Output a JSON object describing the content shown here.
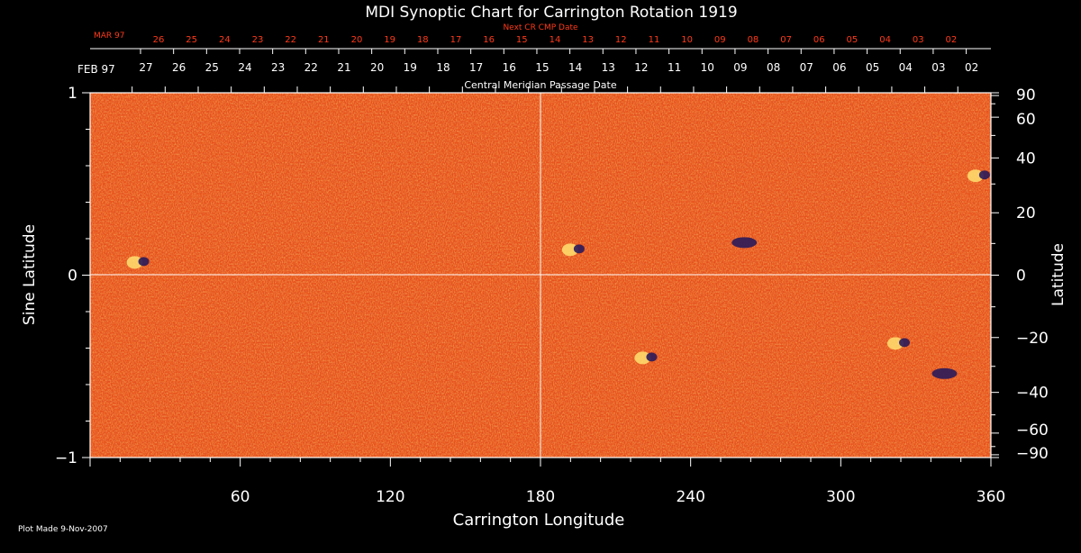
{
  "chart_data": {
    "type": "heatmap",
    "title": "MDI Synoptic Chart for Carrington Rotation 1919",
    "xlabel": "Carrington Longitude",
    "ylabel_left": "Sine Latitude",
    "ylabel_right": "Latitude",
    "xlim": [
      0,
      360
    ],
    "ylim_sine": [
      -1,
      1
    ],
    "x_ticks": [
      60,
      120,
      180,
      240,
      300,
      360
    ],
    "y_left_ticks": [
      -1,
      0,
      1
    ],
    "y_right_ticks": [
      90,
      60,
      40,
      20,
      0,
      -20,
      -40,
      -60,
      -90
    ],
    "x_reference_line": 180,
    "y_reference_line": 0,
    "top_axis_label": "Central Meridian Passage Date",
    "top_axis_month_label": "FEB 97",
    "top_axis_dates": [
      "27",
      "26",
      "25",
      "24",
      "23",
      "22",
      "21",
      "20",
      "19",
      "18",
      "17",
      "16",
      "15",
      "14",
      "13",
      "12",
      "11",
      "10",
      "09",
      "08",
      "07",
      "06",
      "05",
      "04",
      "03",
      "02"
    ],
    "next_axis_label": "Next CR CMP Date",
    "next_axis_month_label": "MAR 97",
    "next_axis_dates": [
      "26",
      "25",
      "24",
      "23",
      "22",
      "21",
      "20",
      "19",
      "18",
      "17",
      "16",
      "15",
      "14",
      "13",
      "12",
      "11",
      "10",
      "09",
      "08",
      "07",
      "06",
      "05",
      "04",
      "03",
      "02"
    ],
    "plot_made_text": "Plot Made  9-Nov-2007",
    "colors": {
      "background": "#000000",
      "field_base": "#e8501a",
      "positive_polarity": "#ffe070",
      "negative_polarity": "#2a1a5a",
      "red_axis_text": "#ff3a1a",
      "axis_white": "#ffffff"
    },
    "active_regions": [
      {
        "lon": 20,
        "lat": 4,
        "polarity": "mixed"
      },
      {
        "lon": 194,
        "lat": 8,
        "polarity": "mixed"
      },
      {
        "lon": 356,
        "lat": 33,
        "polarity": "mixed"
      },
      {
        "lon": 324,
        "lat": -22,
        "polarity": "mixed"
      },
      {
        "lon": 223,
        "lat": -27,
        "polarity": "mixed"
      },
      {
        "lon": 260,
        "lat": 10,
        "polarity": "negative"
      },
      {
        "lon": 340,
        "lat": -33,
        "polarity": "negative"
      }
    ]
  }
}
